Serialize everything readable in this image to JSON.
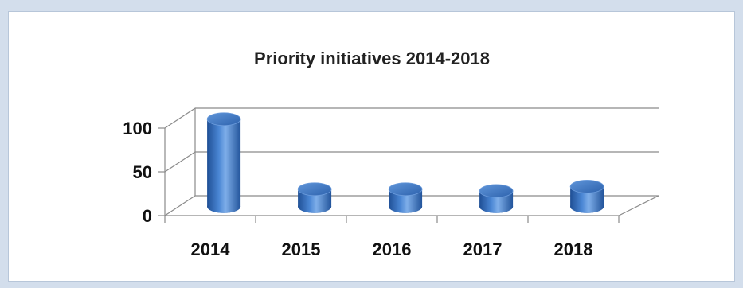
{
  "chart_data": {
    "type": "bar",
    "title": "Priority initiatives 2014-2018",
    "categories": [
      "2014",
      "2015",
      "2016",
      "2017",
      "2018"
    ],
    "values": [
      100,
      20,
      20,
      18,
      23
    ],
    "ylim": [
      0,
      100
    ],
    "yticks": [
      "0",
      "50",
      "100"
    ],
    "yticks_values": [
      0,
      50,
      100
    ],
    "xlabel": "",
    "ylabel": "",
    "grid": true,
    "legend": "none",
    "colors": {
      "bar": "#4a7fc8",
      "bar_dark": "#1f4f95",
      "bar_light": "#9cc0ec",
      "frame": "#d3deec",
      "panel_border": "#b7c6d9",
      "grid": "#8a8a8a"
    }
  }
}
